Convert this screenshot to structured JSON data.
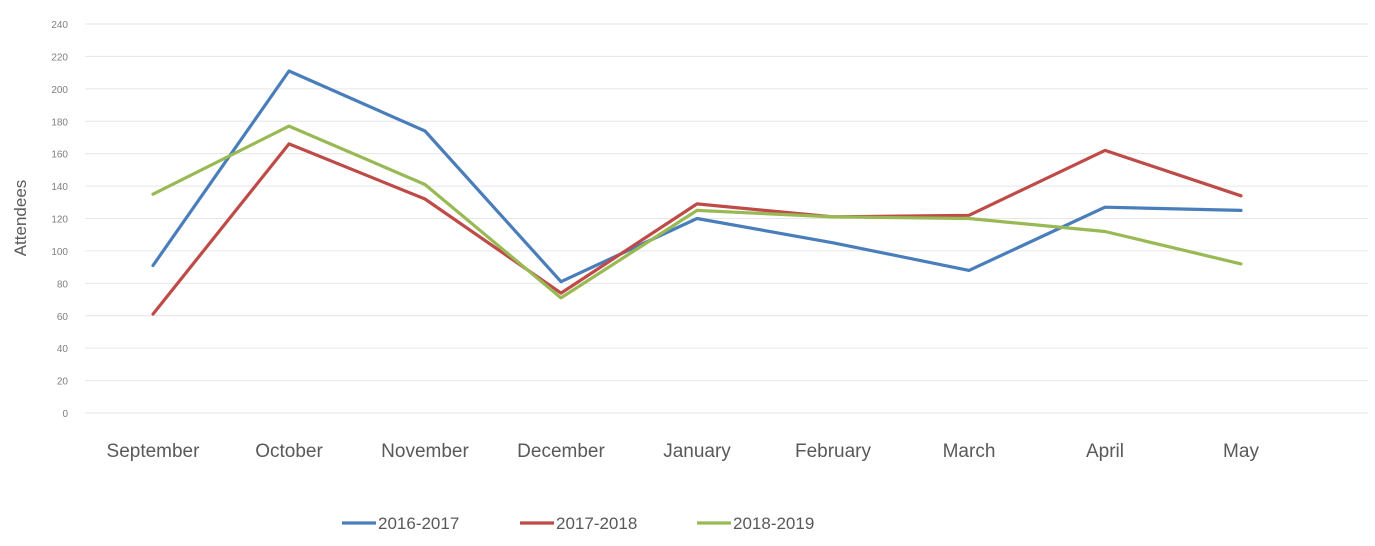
{
  "chart_data": {
    "type": "line",
    "title": "",
    "xlabel": "",
    "ylabel": "Attendees",
    "ylim": [
      0,
      240
    ],
    "yticks": [
      0,
      20,
      40,
      60,
      80,
      100,
      120,
      140,
      160,
      180,
      200,
      220,
      240
    ],
    "grid": true,
    "legend_position": "bottom",
    "categories": [
      "September",
      "October",
      "November",
      "December",
      "January",
      "February",
      "March",
      "April",
      "May"
    ],
    "series": [
      {
        "name": "2016-2017",
        "color": "#4a7ebb",
        "values": [
          91,
          211,
          174,
          81,
          120,
          105,
          88,
          127,
          125
        ]
      },
      {
        "name": "2017-2018",
        "color": "#be4b48",
        "values": [
          61,
          166,
          132,
          74,
          129,
          121,
          122,
          162,
          134
        ]
      },
      {
        "name": "2018-2019",
        "color": "#98b954",
        "values": [
          135,
          177,
          141,
          71,
          125,
          121,
          120,
          112,
          92
        ]
      }
    ]
  }
}
